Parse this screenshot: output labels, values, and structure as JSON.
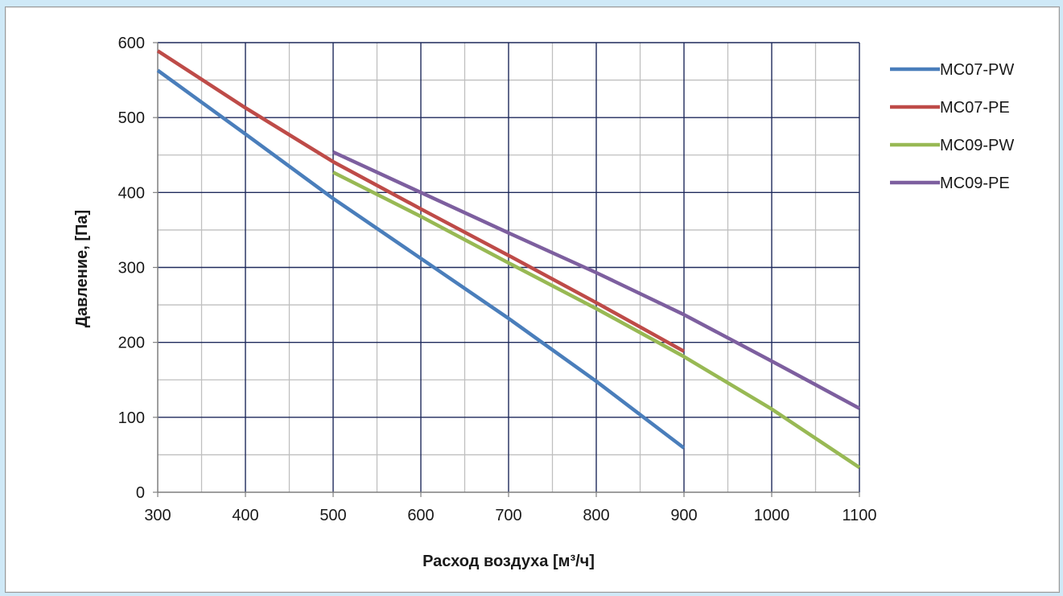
{
  "chart_data": {
    "type": "line",
    "title": "",
    "xlabel": "Расход воздуха [м³/ч]",
    "ylabel": "Давление, [Па]",
    "xlim": [
      300,
      1100
    ],
    "ylim": [
      0,
      600
    ],
    "x_ticks": [
      "300",
      "400",
      "500",
      "600",
      "700",
      "800",
      "900",
      "1000",
      "1100"
    ],
    "y_ticks": [
      "0",
      "100",
      "200",
      "300",
      "400",
      "500",
      "600"
    ],
    "grid": true,
    "legend_position": "right",
    "series": [
      {
        "name": "MC07-PW",
        "color": "#4a7ebb",
        "points": [
          [
            300,
            563
          ],
          [
            400,
            478
          ],
          [
            500,
            392
          ],
          [
            600,
            312
          ],
          [
            700,
            232
          ],
          [
            800,
            148
          ],
          [
            900,
            59
          ]
        ]
      },
      {
        "name": "MC07-PE",
        "color": "#be4b48",
        "points": [
          [
            300,
            589
          ],
          [
            400,
            513
          ],
          [
            500,
            441
          ],
          [
            600,
            378
          ],
          [
            700,
            316
          ],
          [
            800,
            253
          ],
          [
            900,
            188
          ]
        ]
      },
      {
        "name": "MC09-PW",
        "color": "#98b954",
        "points": [
          [
            500,
            427
          ],
          [
            600,
            368
          ],
          [
            700,
            306
          ],
          [
            800,
            245
          ],
          [
            900,
            181
          ],
          [
            1000,
            111
          ],
          [
            1100,
            33
          ]
        ]
      },
      {
        "name": "MC09-PE",
        "color": "#7d5f9f",
        "points": [
          [
            500,
            454
          ],
          [
            600,
            400
          ],
          [
            700,
            346
          ],
          [
            800,
            293
          ],
          [
            900,
            237
          ],
          [
            1000,
            175
          ],
          [
            1100,
            112
          ]
        ]
      }
    ]
  }
}
